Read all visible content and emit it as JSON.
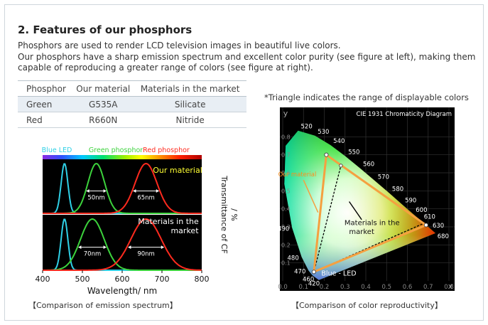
{
  "section": {
    "title": "2. Features of our phosphors",
    "description_lines": [
      "Phosphors are used to render LCD television images in beautiful live colors.",
      "Our phosphors have a sharp emission spectrum and excellent color purity (see figure at left), making them",
      "capable of reproducing a greater range of colors (see figure at right)."
    ]
  },
  "table": {
    "headers": [
      "Phosphor",
      "Our material",
      "Materials in the market"
    ],
    "rows": [
      [
        "Green",
        "G535A",
        "Silicate"
      ],
      [
        "Red",
        "R660N",
        "Nitride"
      ]
    ]
  },
  "colors": {
    "table_highlight": "#e8eef4",
    "spectrum_bg": "#000000",
    "blue_led": "#2fd0e6",
    "green_phosphor": "#3cd23c",
    "red_phosphor": "#ff2a1e",
    "our_triangle": "#f5a040",
    "annotation_yellow": "#ffff33"
  },
  "chart_data": [
    {
      "type": "line",
      "caption": "【Comparison of emission spectrum】",
      "xlabel": "Wavelength/ nm",
      "ylabel": "Transmittance of CF / %",
      "xlim": [
        400,
        800
      ],
      "xticks": [
        400,
        500,
        600,
        700,
        800
      ],
      "legend": [
        "Blue LED",
        "Green phosphor",
        "Red phosphor"
      ],
      "panels": [
        {
          "label": "Our material",
          "series": [
            {
              "name": "Blue LED",
              "peak": 455,
              "fwhm": 20
            },
            {
              "name": "Green phosphor",
              "peak": 535,
              "fwhm": 50
            },
            {
              "name": "Red phosphor",
              "peak": 660,
              "fwhm": 65
            }
          ],
          "fwhm_labels": [
            "50nm",
            "65nm"
          ]
        },
        {
          "label": "Materials in the market",
          "series": [
            {
              "name": "Blue LED",
              "peak": 455,
              "fwhm": 20
            },
            {
              "name": "Green phosphor",
              "peak": 525,
              "fwhm": 70
            },
            {
              "name": "Red phosphor",
              "peak": 660,
              "fwhm": 90
            }
          ],
          "fwhm_labels": [
            "70nm",
            "90nm"
          ]
        }
      ]
    },
    {
      "type": "scatter",
      "title": "CIE 1931 Chromaticity Diagram",
      "note": "*Triangle indicates the range of displayable colors",
      "caption": "【Comparison of color reproductivity】",
      "xlabel": "x",
      "ylabel": "y",
      "xlim": [
        0.0,
        0.8
      ],
      "ylim": [
        0.0,
        0.9
      ],
      "xticks": [
        "0.0",
        "0.1",
        "0.2",
        "0.3",
        "0.4",
        "0.5",
        "0.6",
        "0.7",
        "0.8"
      ],
      "yticks": [
        "0.8",
        "0.7",
        "0.6",
        "0.5",
        "0.4",
        "0.3",
        "0.2",
        "0.1"
      ],
      "wavelength_labels": [
        {
          "label": "520",
          "x": 0.074,
          "y": 0.834
        },
        {
          "label": "530",
          "x": 0.155,
          "y": 0.806
        },
        {
          "label": "540",
          "x": 0.23,
          "y": 0.754
        },
        {
          "label": "550",
          "x": 0.302,
          "y": 0.692
        },
        {
          "label": "560",
          "x": 0.373,
          "y": 0.625
        },
        {
          "label": "570",
          "x": 0.444,
          "y": 0.555
        },
        {
          "label": "580",
          "x": 0.513,
          "y": 0.487
        },
        {
          "label": "590",
          "x": 0.575,
          "y": 0.424
        },
        {
          "label": "600",
          "x": 0.627,
          "y": 0.372
        },
        {
          "label": "610",
          "x": 0.666,
          "y": 0.334
        },
        {
          "label": "630",
          "x": 0.708,
          "y": 0.292
        },
        {
          "label": "680",
          "x": 0.731,
          "y": 0.269
        },
        {
          "label": "490",
          "x": 0.045,
          "y": 0.295
        },
        {
          "label": "480",
          "x": 0.091,
          "y": 0.133
        },
        {
          "label": "470",
          "x": 0.124,
          "y": 0.058
        },
        {
          "label": "460",
          "x": 0.144,
          "y": 0.03
        },
        {
          "label": "420",
          "x": 0.171,
          "y": 0.005
        }
      ],
      "triangles": [
        {
          "name": "Our material",
          "points": [
            [
              0.21,
              0.7
            ],
            [
              0.69,
              0.31
            ],
            [
              0.15,
              0.05
            ]
          ]
        },
        {
          "name": "Materials in the market",
          "points": [
            [
              0.28,
              0.64
            ],
            [
              0.68,
              0.32
            ],
            [
              0.15,
              0.05
            ]
          ]
        }
      ],
      "annotations": [
        "Our material",
        "Materials in the market",
        "Blue - LED"
      ]
    }
  ]
}
